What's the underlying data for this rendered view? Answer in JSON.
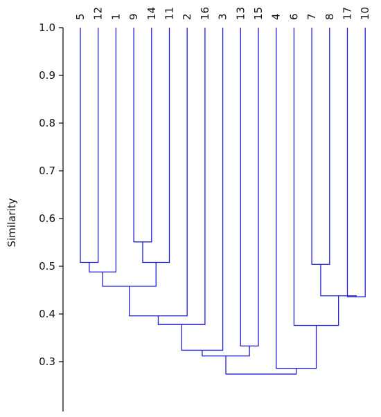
{
  "chart_data": {
    "type": "dendrogram",
    "ylabel": "Similarity",
    "ylim": [
      0.2,
      1.0
    ],
    "yticks": [
      {
        "value": 1.0,
        "label": "1.0"
      },
      {
        "value": 0.9,
        "label": "0.9"
      },
      {
        "value": 0.8,
        "label": "0.8"
      },
      {
        "value": 0.7,
        "label": "0.7"
      },
      {
        "value": 0.6,
        "label": "0.6"
      },
      {
        "value": 0.5,
        "label": "0.5"
      },
      {
        "value": 0.4,
        "label": "0.4"
      },
      {
        "value": 0.3,
        "label": "0.3"
      }
    ],
    "leaf_order": [
      "5",
      "12",
      "1",
      "9",
      "14",
      "11",
      "2",
      "16",
      "3",
      "13",
      "15",
      "4",
      "6",
      "7",
      "8",
      "17",
      "10"
    ],
    "merges": [
      {
        "id": "A",
        "left": "5",
        "right": "12",
        "similarity": 0.508
      },
      {
        "id": "B",
        "left": "A",
        "right": "1",
        "similarity": 0.488
      },
      {
        "id": "C",
        "left": "9",
        "right": "14",
        "similarity": 0.551
      },
      {
        "id": "D",
        "left": "C",
        "right": "11",
        "similarity": 0.508
      },
      {
        "id": "E",
        "left": "B",
        "right": "D",
        "similarity": 0.458
      },
      {
        "id": "F",
        "left": "E",
        "right": "2",
        "similarity": 0.396
      },
      {
        "id": "G",
        "left": "F",
        "right": "16",
        "similarity": 0.378
      },
      {
        "id": "H",
        "left": "G",
        "right": "3",
        "similarity": 0.324
      },
      {
        "id": "I",
        "left": "13",
        "right": "15",
        "similarity": 0.333
      },
      {
        "id": "J",
        "left": "H",
        "right": "I",
        "similarity": 0.312
      },
      {
        "id": "K",
        "left": "7",
        "right": "8",
        "similarity": 0.504
      },
      {
        "id": "L",
        "left": "17",
        "right": "10",
        "similarity": 0.436
      },
      {
        "id": "M",
        "left": "K",
        "right": "L",
        "similarity": 0.438
      },
      {
        "id": "N",
        "left": "6",
        "right": "M",
        "similarity": 0.376
      },
      {
        "id": "O",
        "left": "4",
        "right": "N",
        "similarity": 0.286
      },
      {
        "id": "P",
        "left": "J",
        "right": "O",
        "similarity": 0.274
      }
    ],
    "colors": {
      "links": "#1f1fd6",
      "axis": "#000000",
      "text": "#111111"
    }
  }
}
